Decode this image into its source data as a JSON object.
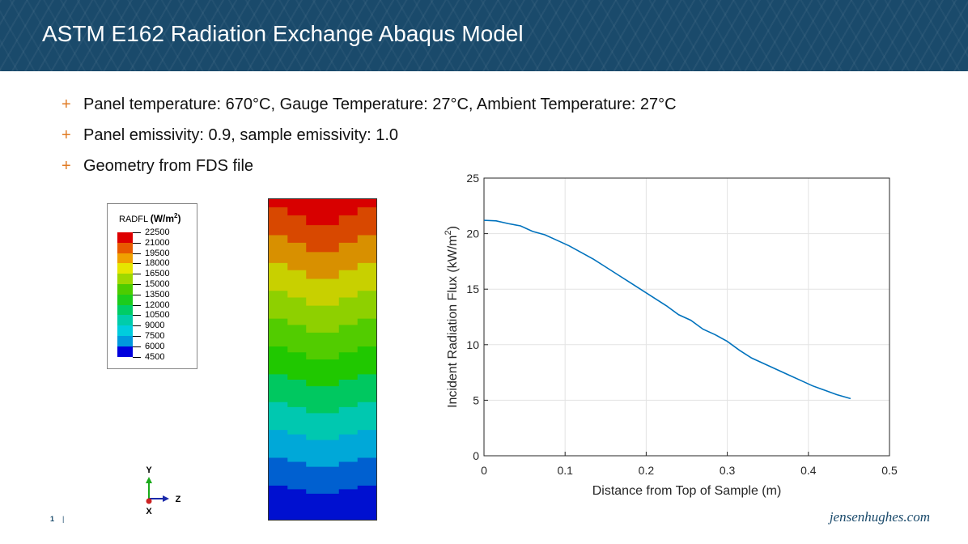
{
  "slide": {
    "title": "ASTM E162 Radiation Exchange Abaqus Model",
    "bullets": [
      "Panel temperature: 670°C, Gauge Temperature: 27°C, Ambient Temperature: 27°C",
      "Panel emissivity: 0.9, sample emissivity: 1.0",
      "Geometry from FDS file"
    ],
    "bullet_marker": "+",
    "page_number": "1",
    "separator": "|",
    "brand": "jensenhughes.com"
  },
  "legend": {
    "variable": "RADFL",
    "unit_base": "(W/m",
    "unit_exp": "2",
    "unit_close": ")",
    "levels": [
      {
        "value": "22500",
        "color": "#dd0000"
      },
      {
        "value": "21000",
        "color": "#e85a00"
      },
      {
        "value": "19500",
        "color": "#f0a000"
      },
      {
        "value": "18000",
        "color": "#e6e600"
      },
      {
        "value": "16500",
        "color": "#9ed800"
      },
      {
        "value": "15000",
        "color": "#4ccc00"
      },
      {
        "value": "13500",
        "color": "#1ccc1c"
      },
      {
        "value": "12000",
        "color": "#00cc66"
      },
      {
        "value": "10500",
        "color": "#00ccaa"
      },
      {
        "value": "9000",
        "color": "#00ccdd"
      },
      {
        "value": "7500",
        "color": "#0099dd"
      },
      {
        "value": "6000",
        "color": "#0055dd"
      },
      {
        "value": "4500",
        "color": "#0000dd"
      }
    ]
  },
  "contour_bands": [
    "#d80000",
    "#d84800",
    "#d89000",
    "#c8d000",
    "#8ed000",
    "#52cc00",
    "#20c800",
    "#00c860",
    "#00c8b0",
    "#00a8d8",
    "#0060d0",
    "#0010d0"
  ],
  "triad": {
    "y": "Y",
    "z": "Z",
    "x": "X"
  },
  "chart_data": {
    "type": "line",
    "title": "",
    "xlabel": "Distance from Top of Sample (m)",
    "ylabel_base": "Incident Radiation Flux (kW/m",
    "ylabel_exp": "2",
    "ylabel_close": ")",
    "xlim": [
      0,
      0.5
    ],
    "ylim": [
      0,
      25
    ],
    "xticks": [
      "0",
      "0.1",
      "0.2",
      "0.3",
      "0.4",
      "0.5"
    ],
    "yticks": [
      "0",
      "5",
      "10",
      "15",
      "20",
      "25"
    ],
    "grid": true,
    "line_color": "#0072bd",
    "series": [
      {
        "x": [
          0,
          0.015,
          0.03,
          0.045,
          0.06,
          0.075,
          0.09,
          0.105,
          0.12,
          0.135,
          0.15,
          0.165,
          0.18,
          0.195,
          0.21,
          0.225,
          0.24,
          0.255,
          0.27,
          0.285,
          0.3,
          0.315,
          0.33,
          0.345,
          0.36,
          0.375,
          0.39,
          0.405,
          0.42,
          0.435,
          0.452
        ],
        "y": [
          21.2,
          21.15,
          20.9,
          20.7,
          20.2,
          19.9,
          19.4,
          18.9,
          18.3,
          17.7,
          17.0,
          16.3,
          15.6,
          14.9,
          14.2,
          13.5,
          12.7,
          12.2,
          11.4,
          10.9,
          10.3,
          9.5,
          8.8,
          8.3,
          7.8,
          7.3,
          6.8,
          6.3,
          5.9,
          5.5,
          5.15
        ]
      }
    ]
  }
}
